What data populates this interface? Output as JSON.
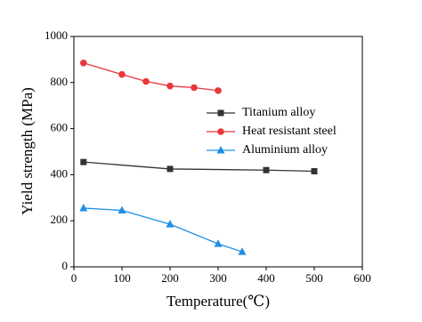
{
  "chart_data": {
    "type": "line",
    "xlabel": "Temperature(℃)",
    "ylabel": "Yield strength (MPa)",
    "xlim": [
      0,
      600
    ],
    "xticks": [
      0,
      100,
      200,
      300,
      400,
      500,
      600
    ],
    "ylim": [
      0,
      1000
    ],
    "yticks": [
      0,
      200,
      400,
      600,
      800,
      1000
    ],
    "legend": "right",
    "series": [
      {
        "name": "Titanium alloy",
        "color": "#333333",
        "marker": "square",
        "x": [
          20,
          200,
          400,
          500
        ],
        "values": [
          455,
          425,
          420,
          415
        ]
      },
      {
        "name": "Heat resistant steel",
        "color": "#e8383d",
        "marker": "circle",
        "x": [
          20,
          100,
          150,
          200,
          250,
          300
        ],
        "values": [
          885,
          835,
          805,
          785,
          778,
          765
        ]
      },
      {
        "name": "Aluminium alloy",
        "color": "#1e8fe6",
        "marker": "triangle",
        "x": [
          20,
          100,
          200,
          300,
          350
        ],
        "values": [
          255,
          245,
          185,
          100,
          65
        ]
      }
    ]
  }
}
